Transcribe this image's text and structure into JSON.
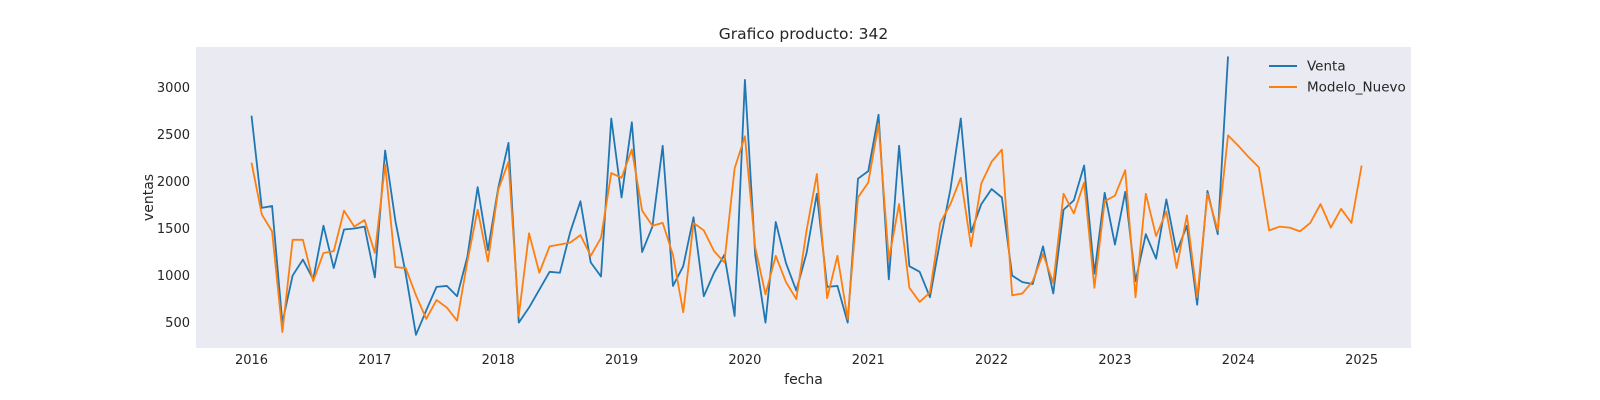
{
  "chart_data": {
    "type": "line",
    "title": "Grafico producto: 342",
    "xlabel": "fecha",
    "ylabel": "ventas",
    "xlim": [
      2015.55,
      2025.4
    ],
    "ylim": [
      230,
      3430
    ],
    "grid": false,
    "legend_position": "top-right",
    "background_color": "#eaeaf2",
    "xticks": [
      "2016",
      "2017",
      "2018",
      "2019",
      "2020",
      "2021",
      "2022",
      "2023",
      "2024",
      "2025"
    ],
    "yticks": [
      500,
      1000,
      1500,
      2000,
      2500,
      3000
    ],
    "series": [
      {
        "name": "Venta",
        "color": "#1f77b4",
        "start_date": "2016-01",
        "values": [
          2700,
          1720,
          1740,
          500,
          1000,
          1170,
          960,
          1530,
          1080,
          1490,
          1500,
          1520,
          980,
          2330,
          1580,
          1020,
          370,
          630,
          880,
          890,
          780,
          1200,
          1940,
          1270,
          1930,
          2410,
          500,
          660,
          850,
          1040,
          1030,
          1460,
          1790,
          1140,
          990,
          2670,
          1830,
          2630,
          1250,
          1520,
          2380,
          890,
          1100,
          1620,
          780,
          1030,
          1220,
          570,
          3080,
          1220,
          500,
          1570,
          1130,
          840,
          1240,
          1870,
          880,
          890,
          500,
          2030,
          2110,
          2710,
          960,
          2380,
          1100,
          1040,
          770,
          1370,
          1920,
          2670,
          1460,
          1760,
          1920,
          1830,
          1000,
          930,
          910,
          1310,
          810,
          1700,
          1800,
          2170,
          1020,
          1880,
          1330,
          1890,
          940,
          1440,
          1180,
          1810,
          1250,
          1530,
          690,
          1900,
          1440,
          3330
        ]
      },
      {
        "name": "Modelo_Nuevo",
        "color": "#ff7f0e",
        "start_date": "2016-01",
        "values": [
          2200,
          1650,
          1470,
          400,
          1380,
          1380,
          940,
          1240,
          1260,
          1690,
          1520,
          1590,
          1240,
          2180,
          1090,
          1080,
          790,
          540,
          740,
          660,
          520,
          1150,
          1700,
          1150,
          1910,
          2210,
          570,
          1450,
          1030,
          1310,
          1330,
          1350,
          1430,
          1210,
          1400,
          2090,
          2040,
          2340,
          1690,
          1530,
          1560,
          1220,
          610,
          1560,
          1480,
          1260,
          1140,
          2140,
          2480,
          1300,
          800,
          1210,
          930,
          750,
          1480,
          2080,
          760,
          1210,
          540,
          1830,
          1990,
          2610,
          1170,
          1760,
          870,
          720,
          820,
          1560,
          1760,
          2040,
          1310,
          1980,
          2210,
          2340,
          790,
          810,
          940,
          1230,
          920,
          1870,
          1660,
          1990,
          870,
          1790,
          1850,
          2120,
          770,
          1870,
          1420,
          1680,
          1080,
          1640,
          770,
          1870,
          1480,
          2490,
          2380,
          2260,
          2150,
          1480,
          1520,
          1510,
          1470,
          1560,
          1760,
          1510,
          1710,
          1560,
          2170
        ]
      }
    ]
  }
}
